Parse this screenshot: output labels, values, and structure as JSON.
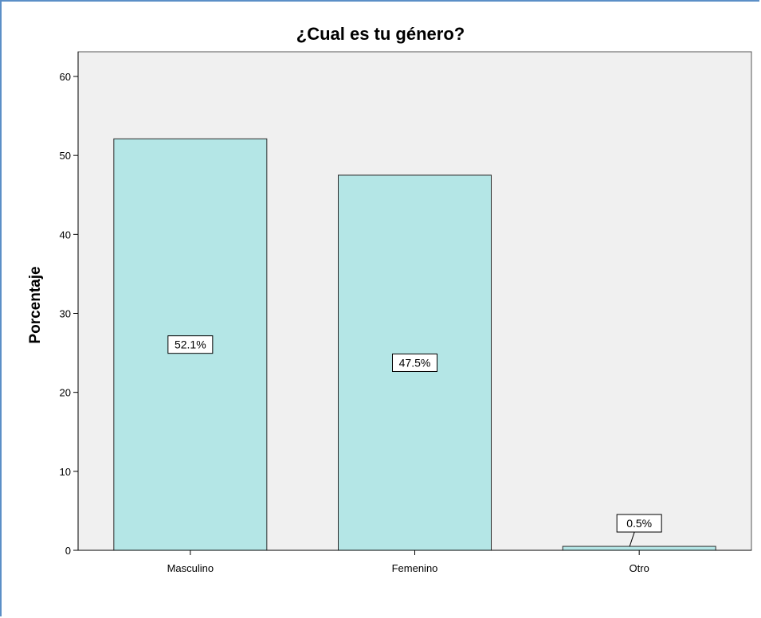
{
  "chart_data": {
    "type": "bar",
    "title": "¿Cual es tu género?",
    "xlabel": "",
    "ylabel": "Porcentaje",
    "categories": [
      "Masculino",
      "Femenino",
      "Otro"
    ],
    "values": [
      52.1,
      47.5,
      0.5
    ],
    "data_labels": [
      "52.1%",
      "47.5%",
      "0.5%"
    ],
    "ylim": [
      0,
      60
    ],
    "yticks": [
      0,
      10,
      20,
      30,
      40,
      50,
      60
    ],
    "grid": false,
    "legend": "none",
    "colors": {
      "bar_fill": "#b4e6e6",
      "bar_stroke": "#2b2b2b",
      "plot_background": "#f0f0f0",
      "frame_border": "#5b8fc7"
    }
  }
}
